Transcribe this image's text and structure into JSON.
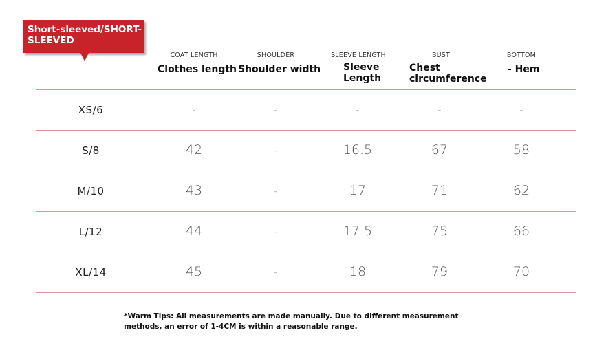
{
  "tag": {
    "label": "Short-sleeved/SHORT-SLEEVED",
    "color": "#c8222b"
  },
  "columns": [
    {
      "small": "COAT LENGTH",
      "main": "Clothes length"
    },
    {
      "small": "SHOULDER",
      "main": "Shoulder width"
    },
    {
      "small": "SLEEVE LENGTH",
      "main": "Sleeve Length"
    },
    {
      "small": "BUST",
      "main": "Chest circumference"
    },
    {
      "small": "BOTTOM",
      "main": "- Hem"
    }
  ],
  "rows": [
    {
      "size": "XS/6",
      "values": [
        "-",
        "-",
        "-",
        "-",
        "-"
      ]
    },
    {
      "size": "S/8",
      "values": [
        "42",
        "-",
        "16.5",
        "67",
        "58"
      ]
    },
    {
      "size": "M/10",
      "values": [
        "43",
        "-",
        "17",
        "71",
        "62"
      ]
    },
    {
      "size": "L/12",
      "values": [
        "44",
        "-",
        "17.5",
        "75",
        "66"
      ]
    },
    {
      "size": "XL/14",
      "values": [
        "45",
        "-",
        "18",
        "79",
        "70"
      ]
    }
  ],
  "note": "*Warm Tips: All measurements are made manually. Due to different measurement methods, an error of 1-4CM is within a reasonable range.",
  "accent_line_color": "#d9939a"
}
